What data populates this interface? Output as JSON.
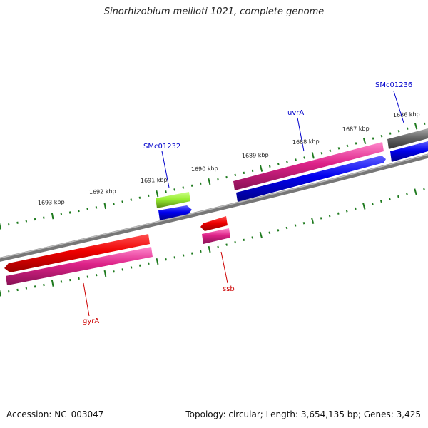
{
  "title": "Sinorhizobium meliloti 1021, complete genome",
  "footer": {
    "accession_label": "Accession: NC_003047",
    "summary": "Topology: circular; Length: 3,654,135 bp; Genes: 3,425"
  },
  "ruler": {
    "ticks": [
      "1686 kbp",
      "1687 kbp",
      "1688 kbp",
      "1689 kbp",
      "1690 kbp",
      "1691 kbp",
      "1692 kbp",
      "1693 kbp"
    ]
  },
  "genes": [
    {
      "id": "SMc01236",
      "label": "SMc01236",
      "color": "#0000cc"
    },
    {
      "id": "uvrA",
      "label": "uvrA",
      "color": "#0000cc"
    },
    {
      "id": "SMc01232",
      "label": "SMc01232",
      "color": "#0000cc"
    },
    {
      "id": "ssb",
      "label": "ssb",
      "color": "#cc0000"
    },
    {
      "id": "gyrA",
      "label": "gyrA",
      "color": "#cc0000"
    }
  ],
  "colors": {
    "backbone": "#8a8a8a",
    "tick": "#1e7a1e",
    "cds": "#ee0000",
    "gene": "#dd2288",
    "misc": "#99ee33",
    "rna": "#0000ee",
    "other": "#666666"
  }
}
